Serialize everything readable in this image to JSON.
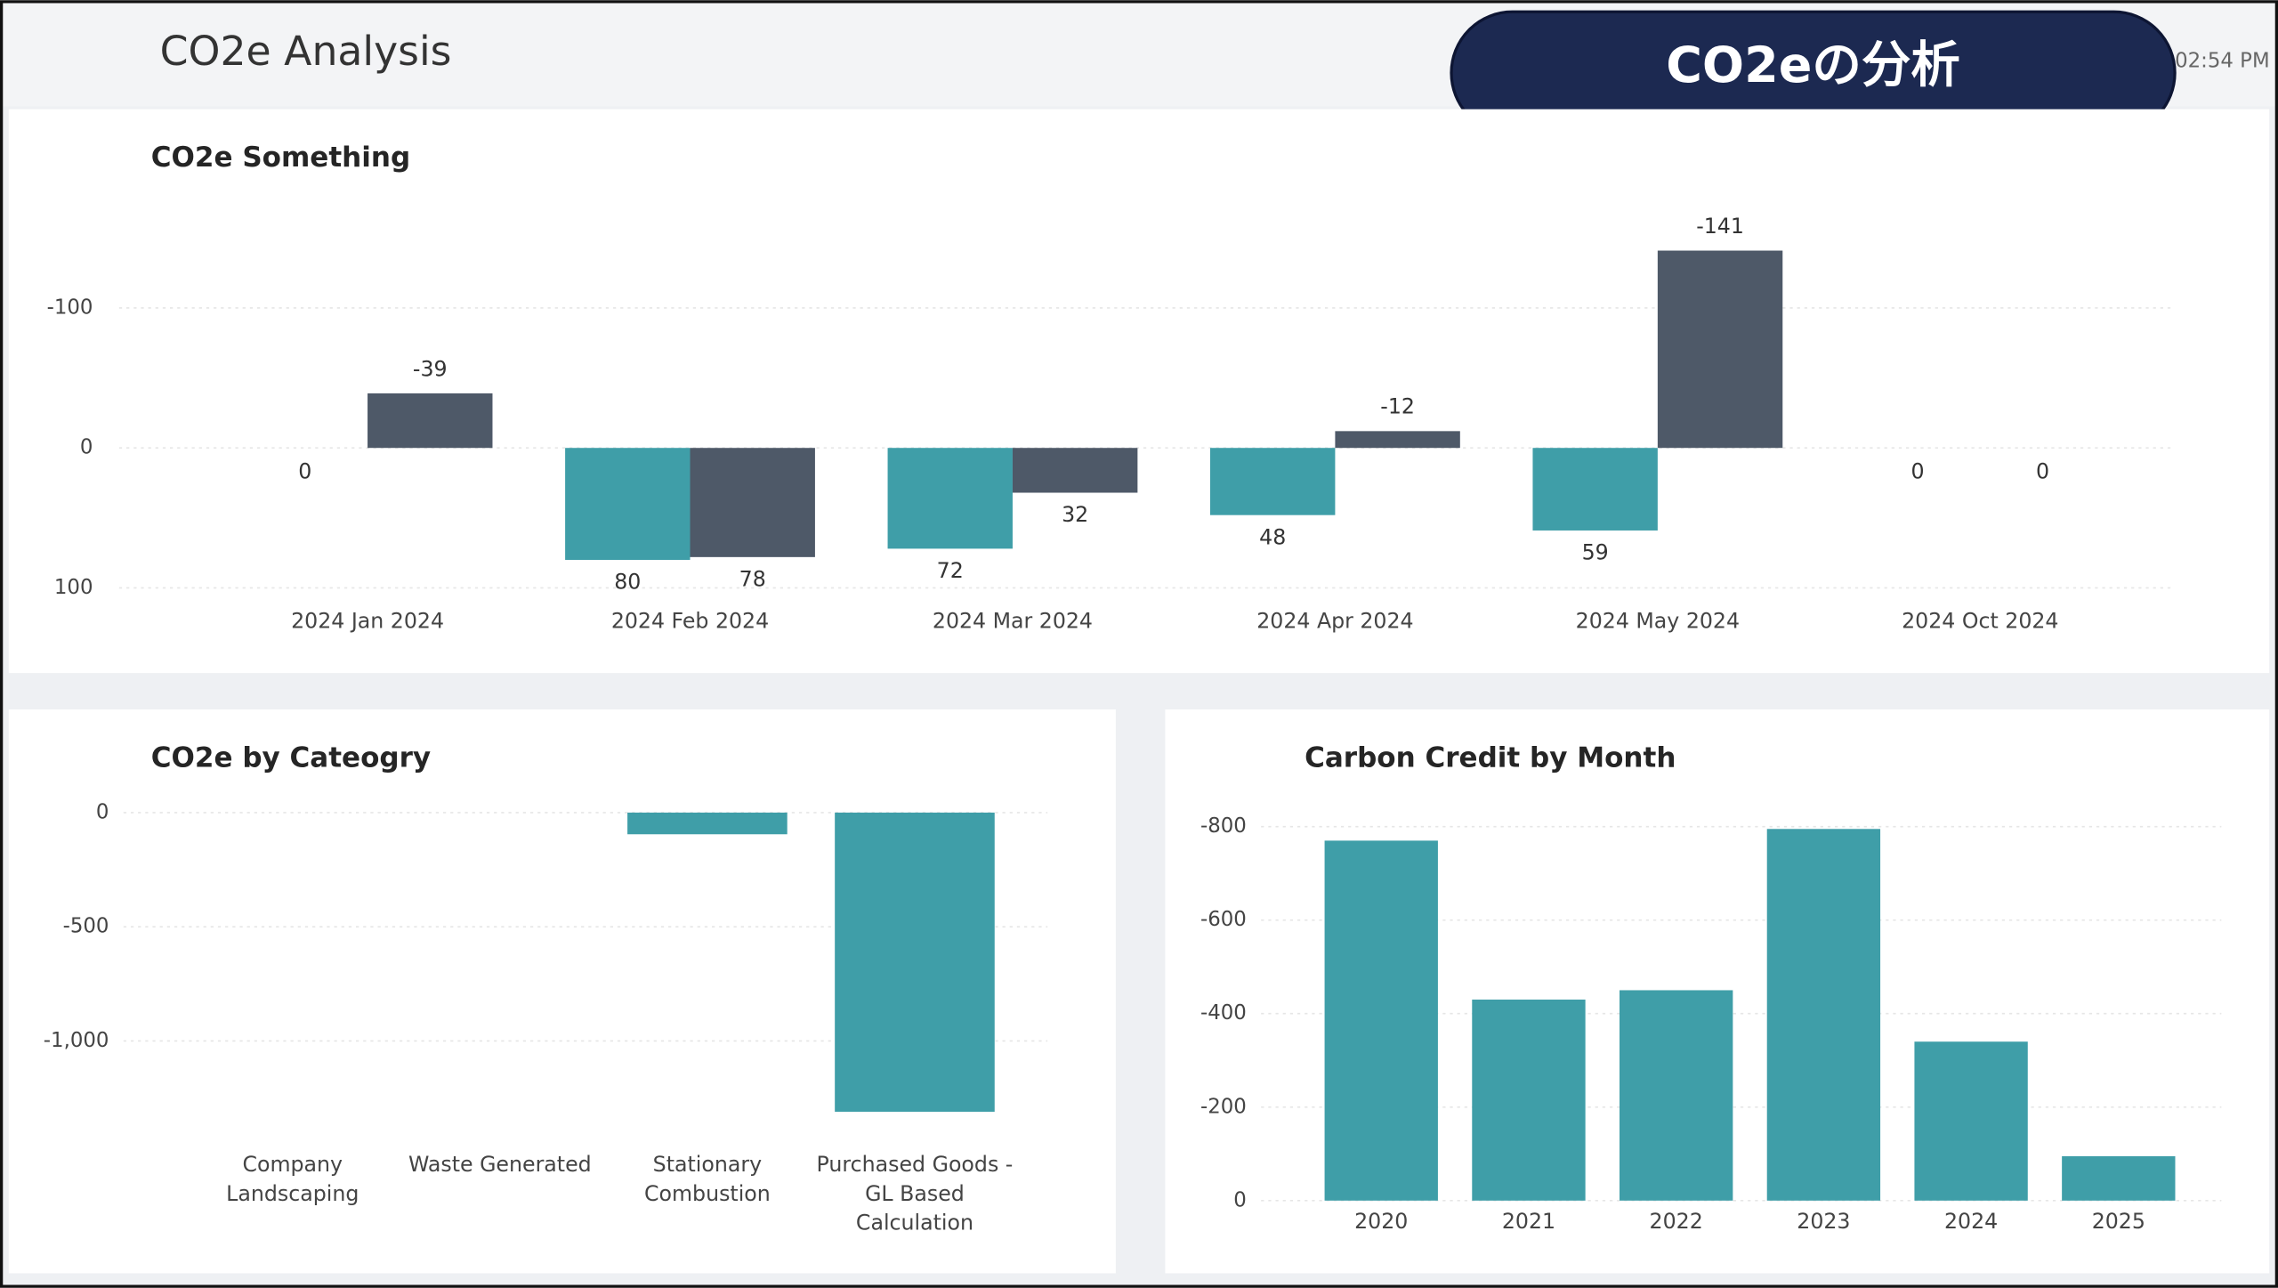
{
  "header": {
    "title": "CO2e Analysis",
    "time": "02:54 PM",
    "banner": "CO2eの分析"
  },
  "chart_data": [
    {
      "type": "bar",
      "title": "CO2e Something",
      "categories": [
        "2024 Jan 2024",
        "2024 Feb 2024",
        "2024 Mar 2024",
        "2024 Apr 2024",
        "2024 May 2024",
        "2024 Oct 2024"
      ],
      "series": [
        {
          "color": "#3f9ea8",
          "values": [
            0,
            80,
            72,
            48,
            59,
            0
          ]
        },
        {
          "color": "#4e5968",
          "values": [
            -39,
            78,
            32,
            -12,
            -141,
            0
          ]
        }
      ],
      "ylim": [
        110,
        -160
      ],
      "yticks": [
        -100,
        0,
        100
      ],
      "grid": true,
      "data_labels": true
    },
    {
      "type": "bar",
      "title": "CO2e by Cateogry",
      "categories": [
        "Company Landscaping",
        "Waste Generated",
        "Stationary Combustion",
        "Purchased Goods - GL Based Calculation"
      ],
      "values": [
        0,
        0,
        -95,
        -1310
      ],
      "color": "#3f9ea8",
      "ylim": [
        -1400,
        0
      ],
      "yticks": [
        0,
        -500,
        {
          "value": -1000,
          "label": "-1,000"
        }
      ],
      "grid": true
    },
    {
      "type": "bar",
      "title": "Carbon Credit by Month",
      "categories": [
        "2020",
        "2021",
        "2022",
        "2023",
        "2024",
        "2025"
      ],
      "values": [
        -770,
        -430,
        -450,
        -795,
        -340,
        -95
      ],
      "color": "#3f9ea8",
      "ylim": [
        0,
        -830
      ],
      "yticks": [
        0,
        -200,
        -400,
        -600,
        -800
      ],
      "grid": true
    }
  ]
}
